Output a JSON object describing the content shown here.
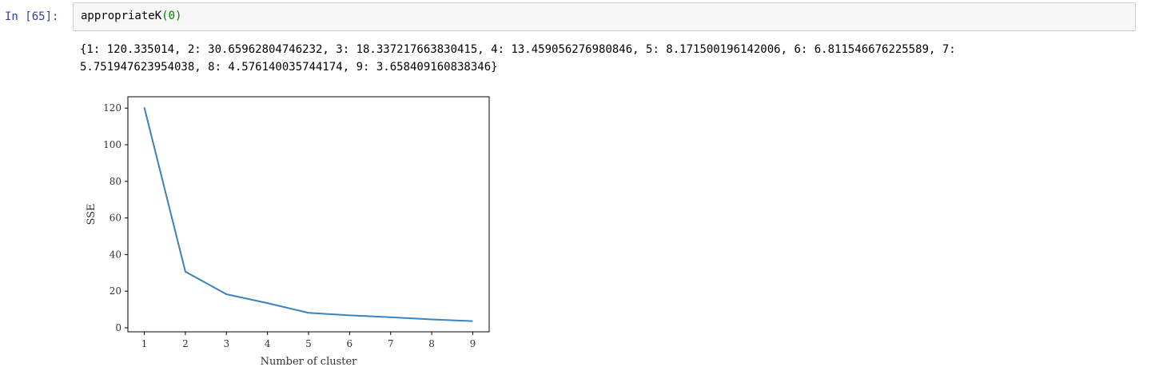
{
  "cell": {
    "prompt": "In [65]:",
    "code_func": "appropriateK",
    "code_open": "(",
    "code_arg": "0",
    "code_close": ")"
  },
  "output": {
    "line1": "{1: 120.335014, 2: 30.65962804746232, 3: 18.337217663830415, 4: 13.459056276980846, 5: 8.171500196142006, 6: 6.811546676225589, 7:",
    "line2": "5.751947623954038, 8: 4.576140035744174, 9: 3.658409160838346}"
  },
  "chart_data": {
    "type": "line",
    "x": [
      1,
      2,
      3,
      4,
      5,
      6,
      7,
      8,
      9
    ],
    "values": [
      120.335014,
      30.65962804746232,
      18.337217663830415,
      13.459056276980846,
      8.171500196142006,
      6.811546676225589,
      5.751947623954038,
      4.576140035744174,
      3.658409160838346
    ],
    "xlabel": "Number of cluster",
    "ylabel": "SSE",
    "xticks": [
      "1",
      "2",
      "3",
      "4",
      "5",
      "6",
      "7",
      "8",
      "9"
    ],
    "yticks": [
      "0",
      "20",
      "40",
      "60",
      "80",
      "100",
      "120"
    ],
    "xlim": [
      0.6,
      9.4
    ],
    "ylim": [
      -2.2,
      126.2
    ],
    "grid": false,
    "line_color": "#3b82be"
  }
}
